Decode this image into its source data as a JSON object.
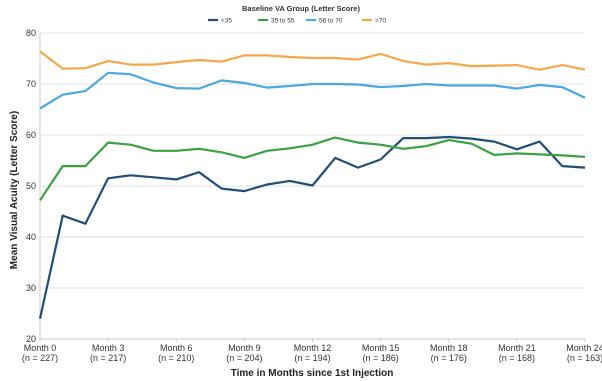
{
  "chart_data": {
    "type": "line",
    "legend": {
      "title": "Baseline VA Group (Letter Score)",
      "position": "top-center"
    },
    "xlabel": "Time in Months since 1st Injection",
    "ylabel": "Mean Visual Acuity (Letter Score)",
    "ylim": [
      20,
      80
    ],
    "yticks": [
      20,
      30,
      40,
      50,
      60,
      70,
      80
    ],
    "xlim": [
      0,
      24
    ],
    "xticks": [
      {
        "x": 0,
        "label": "Month 0",
        "sublabel": "(n = 227)"
      },
      {
        "x": 3,
        "label": "Month 3",
        "sublabel": "(n = 217)"
      },
      {
        "x": 6,
        "label": "Month 6",
        "sublabel": "(n = 210)"
      },
      {
        "x": 9,
        "label": "Month 9",
        "sublabel": "(n = 204)"
      },
      {
        "x": 12,
        "label": "Month 12",
        "sublabel": "(n = 194)"
      },
      {
        "x": 15,
        "label": "Month 15",
        "sublabel": "(n = 186)"
      },
      {
        "x": 18,
        "label": "Month 18",
        "sublabel": "(n = 176)"
      },
      {
        "x": 21,
        "label": "Month 21",
        "sublabel": "(n = 168)"
      },
      {
        "x": 24,
        "label": "Month 24",
        "sublabel": "(n = 163)"
      }
    ],
    "grid": {
      "horizontal": true,
      "vertical": false
    },
    "x": [
      0,
      1,
      2,
      3,
      4,
      5,
      6,
      7,
      8,
      9,
      10,
      11,
      12,
      13,
      14,
      15,
      16,
      17,
      18,
      19,
      20,
      21,
      22,
      23,
      24
    ],
    "series": [
      {
        "name": "<35",
        "color": "#1f4e79",
        "values": [
          24.0,
          44.2,
          42.6,
          51.5,
          52.1,
          51.7,
          51.3,
          52.7,
          49.5,
          49.0,
          50.3,
          51.0,
          50.1,
          55.5,
          53.6,
          55.2,
          59.4,
          59.4,
          59.6,
          59.3,
          58.7,
          57.2,
          58.7,
          53.9,
          53.6
        ]
      },
      {
        "name": "35 to 55",
        "color": "#3aa141",
        "values": [
          47.2,
          53.9,
          53.9,
          58.5,
          58.1,
          56.9,
          56.9,
          57.3,
          56.6,
          55.5,
          56.9,
          57.4,
          58.1,
          59.5,
          58.5,
          58.1,
          57.3,
          57.8,
          59.0,
          58.3,
          56.1,
          56.4,
          56.2,
          56.0,
          55.7
        ]
      },
      {
        "name": "56 to 70",
        "color": "#4aa8e0",
        "values": [
          65.2,
          67.9,
          68.6,
          72.2,
          71.9,
          70.3,
          69.2,
          69.1,
          70.7,
          70.2,
          69.3,
          69.6,
          70.0,
          70.0,
          69.9,
          69.4,
          69.6,
          70.0,
          69.7,
          69.7,
          69.7,
          69.1,
          69.8,
          69.4,
          67.3
        ]
      },
      {
        "name": ">70",
        "color": "#f5a84a",
        "values": [
          76.4,
          73.0,
          73.1,
          74.5,
          73.8,
          73.8,
          74.3,
          74.7,
          74.4,
          75.6,
          75.6,
          75.3,
          75.1,
          75.1,
          74.8,
          75.9,
          74.5,
          73.8,
          74.1,
          73.5,
          73.6,
          73.7,
          72.8,
          73.7,
          72.8
        ]
      }
    ]
  }
}
